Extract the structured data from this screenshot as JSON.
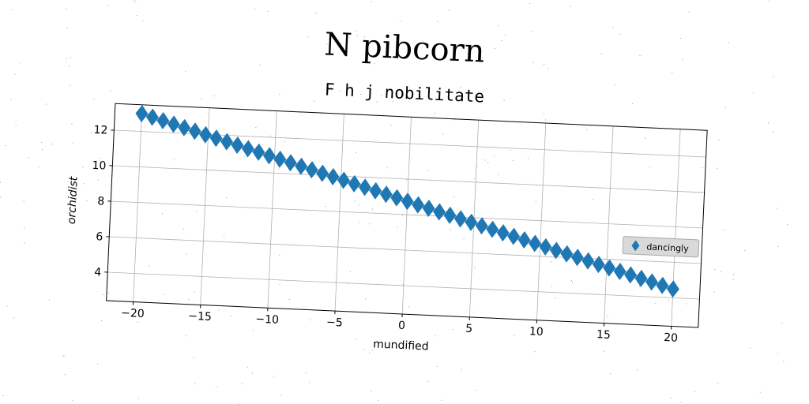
{
  "chart_data": {
    "type": "scatter",
    "title": "N pibcorn",
    "subtitle": "F h j nobilitate",
    "xlabel": "mundified",
    "ylabel": "orchidist",
    "xlim": [
      -22,
      22
    ],
    "ylim": [
      2.4,
      13.5
    ],
    "xticks": [
      -20,
      -15,
      -10,
      -5,
      0,
      5,
      10,
      15,
      20
    ],
    "xtick_labels": [
      "−20",
      "−15",
      "−10",
      "−5",
      "0",
      "5",
      "10",
      "15",
      "20"
    ],
    "yticks": [
      4,
      6,
      8,
      10,
      12
    ],
    "ytick_labels": [
      "4",
      "6",
      "8",
      "10",
      "12"
    ],
    "grid": true,
    "legend_position": "right",
    "marker": "diamond",
    "series": [
      {
        "name": "dancingly",
        "color": "#1f77b4",
        "x": [
          -20.0,
          -19.2,
          -18.4,
          -17.6,
          -16.8,
          -16.0,
          -15.2,
          -14.4,
          -13.6,
          -12.8,
          -12.0,
          -11.2,
          -10.4,
          -9.6,
          -8.8,
          -8.0,
          -7.2,
          -6.4,
          -5.6,
          -4.8,
          -4.0,
          -3.2,
          -2.4,
          -1.6,
          -0.8,
          0.0,
          0.8,
          1.6,
          2.4,
          3.2,
          4.0,
          4.8,
          5.6,
          6.4,
          7.2,
          8.0,
          8.8,
          9.6,
          10.4,
          11.2,
          12.0,
          12.8,
          13.6,
          14.4,
          15.2,
          16.0,
          16.8,
          17.6,
          18.4,
          19.2,
          20.0
        ],
        "y": [
          13.0,
          12.83,
          12.66,
          12.49,
          12.32,
          12.15,
          11.98,
          11.81,
          11.64,
          11.47,
          11.3,
          11.13,
          10.96,
          10.79,
          10.62,
          10.45,
          10.28,
          10.11,
          9.94,
          9.77,
          9.6,
          9.43,
          9.26,
          9.09,
          8.92,
          8.75,
          8.58,
          8.41,
          8.24,
          8.07,
          7.9,
          7.73,
          7.56,
          7.39,
          7.22,
          7.05,
          6.88,
          6.71,
          6.54,
          6.37,
          6.2,
          6.03,
          5.86,
          5.69,
          5.52,
          5.35,
          5.18,
          5.01,
          4.84,
          4.67,
          4.5
        ]
      }
    ]
  }
}
